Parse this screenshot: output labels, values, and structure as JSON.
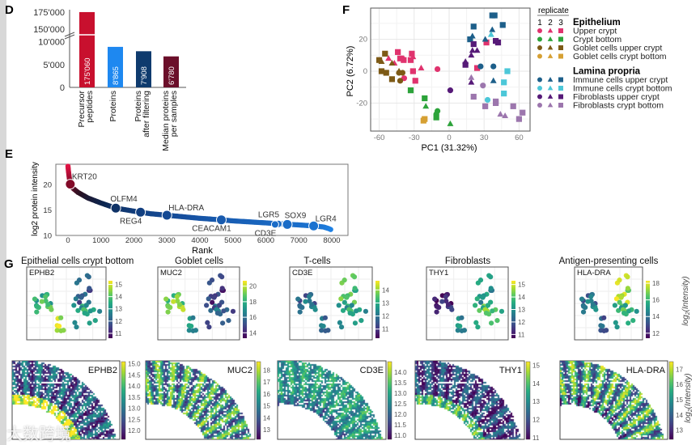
{
  "panel_letters": {
    "D": "D",
    "E": "E",
    "F": "F",
    "G": "G"
  },
  "watermark": "大数跨境",
  "chart_data": [
    {
      "id": "D",
      "type": "bar",
      "categories": [
        [
          "Precursor",
          "peptides"
        ],
        [
          "Proteins"
        ],
        [
          "Proteins",
          "after filtering"
        ],
        [
          "Median proteins",
          "per samples"
        ]
      ],
      "values": [
        175060,
        8865,
        7908,
        6780
      ],
      "value_labels": [
        "175'060",
        "8'865",
        "7'908",
        "6'780"
      ],
      "colors": [
        "#c8102e",
        "#1e88f0",
        "#0f3b6e",
        "#6b0f2a"
      ],
      "ytick_labels": [
        "0",
        "5'000",
        "10'000",
        "150'000",
        "175'000"
      ],
      "yticks": [
        0,
        5000,
        10000,
        150000,
        175000
      ],
      "axis_break": [
        10500,
        148000
      ]
    },
    {
      "id": "E",
      "type": "line",
      "xlabel": "Rank",
      "ylabel": "log2 protein intensity",
      "xticks": [
        0,
        1000,
        2000,
        3000,
        4000,
        5000,
        6000,
        7000,
        8000
      ],
      "yticks": [
        10,
        15,
        20
      ],
      "xlim": [
        -400,
        8450
      ],
      "ylim": [
        9.9,
        24
      ],
      "curve": [
        [
          0,
          23.5
        ],
        [
          15,
          22.5
        ],
        [
          40,
          21.2
        ],
        [
          70,
          20.2
        ],
        [
          150,
          19.2
        ],
        [
          300,
          18.4
        ],
        [
          600,
          17.3
        ],
        [
          1000,
          16.3
        ],
        [
          1450,
          15.3
        ],
        [
          2000,
          14.7
        ],
        [
          2500,
          14.2
        ],
        [
          3000,
          13.9
        ],
        [
          3500,
          13.6
        ],
        [
          4000,
          13.3
        ],
        [
          4650,
          13.0
        ],
        [
          5000,
          12.8
        ],
        [
          5500,
          12.6
        ],
        [
          6000,
          12.4
        ],
        [
          6500,
          12.2
        ],
        [
          7000,
          12.0
        ],
        [
          7450,
          11.8
        ],
        [
          7750,
          11.6
        ],
        [
          7900,
          11.3
        ],
        [
          8000,
          11.0
        ]
      ],
      "labeled_proteins": [
        {
          "name": "KRT20",
          "rank": 70,
          "value": 20.0,
          "pos": "above-right"
        },
        {
          "name": "OLFM4",
          "rank": 1450,
          "value": 15.3,
          "pos": "above"
        },
        {
          "name": "REG4",
          "rank": 2200,
          "value": 14.5,
          "pos": "below-left"
        },
        {
          "name": "HLA-DRA",
          "rank": 3000,
          "value": 13.9,
          "pos": "above-right"
        },
        {
          "name": "CEACAM1",
          "rank": 4650,
          "value": 13.0,
          "pos": "below-left"
        },
        {
          "name": "LGR5",
          "rank": 6380,
          "value": 12.2,
          "pos": "above-left"
        },
        {
          "name": "CD3E",
          "rank": 6280,
          "value": 12.1,
          "pos": "below-left"
        },
        {
          "name": "SOX9",
          "rank": 6650,
          "value": 12.1,
          "pos": "above"
        },
        {
          "name": "LGR4",
          "rank": 7450,
          "value": 11.8,
          "pos": "above-right"
        }
      ]
    },
    {
      "id": "F",
      "type": "scatter",
      "xlabel": "PC1 (31.32%)",
      "ylabel": "PC2 (6.72%)",
      "xticks": [
        -60,
        -30,
        0,
        30,
        60
      ],
      "yticks": [
        -20,
        0,
        20
      ],
      "xlim": [
        -66,
        70
      ],
      "ylim": [
        -37,
        40
      ],
      "legend_title": "replicate",
      "replicates": [
        "1",
        "2",
        "3"
      ],
      "replicate_shapes": [
        "circle",
        "triangle",
        "square"
      ],
      "groups": [
        {
          "tissue": "Epithelium",
          "items": [
            {
              "name": "Upper crypt",
              "color": "#e0336e"
            },
            {
              "name": "Crypt bottom",
              "color": "#2ca33a"
            },
            {
              "name": "Goblet cells upper crypt",
              "color": "#7d5a16"
            },
            {
              "name": "Goblet cells crypt bottom",
              "color": "#d6a033"
            }
          ]
        },
        {
          "tissue": "Lamina propria",
          "items": [
            {
              "name": "Immune cells upper crypt",
              "color": "#1d5f8a"
            },
            {
              "name": "Immune cells crypt bottom",
              "color": "#4cc7d8"
            },
            {
              "name": "Fibroblasts upper crypt",
              "color": "#561a78"
            },
            {
              "name": "Fibroblasts crypt bottom",
              "color": "#9c76ad"
            }
          ]
        }
      ],
      "points": [
        {
          "g": "Upper crypt",
          "r": 1,
          "x": -10,
          "y": 1.3
        },
        {
          "g": "Upper crypt",
          "r": 1,
          "x": -38.6,
          "y": -4.4
        },
        {
          "g": "Upper crypt",
          "r": 2,
          "x": -52,
          "y": 8
        },
        {
          "g": "Upper crypt",
          "r": 2,
          "x": -47,
          "y": 5
        },
        {
          "g": "Upper crypt",
          "r": 2,
          "x": -39,
          "y": 8
        },
        {
          "g": "Upper crypt",
          "r": 2,
          "x": -31,
          "y": 9
        },
        {
          "g": "Upper crypt",
          "r": 2,
          "x": -24,
          "y": 2
        },
        {
          "g": "Upper crypt",
          "r": 3,
          "x": -44,
          "y": 12
        },
        {
          "g": "Upper crypt",
          "r": 3,
          "x": -42,
          "y": 8
        },
        {
          "g": "Upper crypt",
          "r": 3,
          "x": -39,
          "y": 7
        },
        {
          "g": "Upper crypt",
          "r": 3,
          "x": -32,
          "y": 11
        },
        {
          "g": "Upper crypt",
          "r": 3,
          "x": -33,
          "y": 7
        },
        {
          "g": "Upper crypt",
          "r": 3,
          "x": -31,
          "y": 0
        },
        {
          "g": "Upper crypt",
          "r": 3,
          "x": -29,
          "y": -6
        },
        {
          "g": "Upper crypt",
          "r": 3,
          "x": 32,
          "y": 18
        },
        {
          "g": "Upper crypt",
          "r": 3,
          "x": 24,
          "y": 2
        },
        {
          "g": "Crypt bottom",
          "r": 1,
          "x": -10,
          "y": -25
        },
        {
          "g": "Crypt bottom",
          "r": 1,
          "x": -11,
          "y": -27
        },
        {
          "g": "Crypt bottom",
          "r": 2,
          "x": -20,
          "y": -22
        },
        {
          "g": "Crypt bottom",
          "r": 2,
          "x": 1,
          "y": -33
        },
        {
          "g": "Crypt bottom",
          "r": 3,
          "x": -33,
          "y": -12
        },
        {
          "g": "Crypt bottom",
          "r": 3,
          "x": -21,
          "y": -17
        },
        {
          "g": "Crypt bottom",
          "r": 3,
          "x": -11,
          "y": -29
        },
        {
          "g": "Goblet cells upper crypt",
          "r": 1,
          "x": -43,
          "y": -1
        },
        {
          "g": "Goblet cells upper crypt",
          "r": 1,
          "x": -42,
          "y": -6
        },
        {
          "g": "Goblet cells upper crypt",
          "r": 1,
          "x": -40,
          "y": -1
        },
        {
          "g": "Goblet cells upper crypt",
          "r": 2,
          "x": -58,
          "y": 6
        },
        {
          "g": "Goblet cells upper crypt",
          "r": 2,
          "x": -49,
          "y": 5
        },
        {
          "g": "Goblet cells upper crypt",
          "r": 2,
          "x": -43,
          "y": 0
        },
        {
          "g": "Goblet cells upper crypt",
          "r": 3,
          "x": -60,
          "y": 7
        },
        {
          "g": "Goblet cells upper crypt",
          "r": 3,
          "x": -55,
          "y": 11
        },
        {
          "g": "Goblet cells upper crypt",
          "r": 3,
          "x": -58,
          "y": 0
        },
        {
          "g": "Goblet cells upper crypt",
          "r": 3,
          "x": -54,
          "y": -1
        },
        {
          "g": "Goblet cells upper crypt",
          "r": 3,
          "x": -49,
          "y": -5
        },
        {
          "g": "Goblet cells crypt bottom",
          "r": 3,
          "x": -22,
          "y": -31
        },
        {
          "g": "Goblet cells crypt bottom",
          "r": 3,
          "x": -21,
          "y": -30
        },
        {
          "g": "Immune cells upper crypt",
          "r": 1,
          "x": 27,
          "y": 3
        },
        {
          "g": "Immune cells upper crypt",
          "r": 1,
          "x": 38,
          "y": 3
        },
        {
          "g": "Immune cells upper crypt",
          "r": 2,
          "x": 20,
          "y": 22
        },
        {
          "g": "Immune cells upper crypt",
          "r": 2,
          "x": 37,
          "y": 26
        },
        {
          "g": "Immune cells upper crypt",
          "r": 2,
          "x": 31,
          "y": 20
        },
        {
          "g": "Immune cells upper crypt",
          "r": 2,
          "x": 38,
          "y": -6
        },
        {
          "g": "Immune cells upper crypt",
          "r": 3,
          "x": 21,
          "y": 28
        },
        {
          "g": "Immune cells upper crypt",
          "r": 3,
          "x": 18,
          "y": 20
        },
        {
          "g": "Immune cells upper crypt",
          "r": 3,
          "x": 37,
          "y": 35
        },
        {
          "g": "Immune cells upper crypt",
          "r": 3,
          "x": 39,
          "y": 35
        },
        {
          "g": "Immune cells upper crypt",
          "r": 3,
          "x": 46,
          "y": 29
        },
        {
          "g": "Immune cells crypt bottom",
          "r": 1,
          "x": 33,
          "y": -18
        },
        {
          "g": "Immune cells crypt bottom",
          "r": 2,
          "x": 36,
          "y": 23
        },
        {
          "g": "Immune cells crypt bottom",
          "r": 3,
          "x": 50,
          "y": 0
        },
        {
          "g": "Immune cells crypt bottom",
          "r": 3,
          "x": 47,
          "y": -7
        },
        {
          "g": "Immune cells crypt bottom",
          "r": 3,
          "x": 47,
          "y": -14
        },
        {
          "g": "Fibroblasts upper crypt",
          "r": 1,
          "x": 1,
          "y": -12
        },
        {
          "g": "Fibroblasts upper crypt",
          "r": 2,
          "x": 14,
          "y": 6
        },
        {
          "g": "Fibroblasts upper crypt",
          "r": 2,
          "x": 20,
          "y": 13
        },
        {
          "g": "Fibroblasts upper crypt",
          "r": 2,
          "x": 19,
          "y": 10
        },
        {
          "g": "Fibroblasts upper crypt",
          "r": 2,
          "x": 24,
          "y": 13
        },
        {
          "g": "Fibroblasts upper crypt",
          "r": 2,
          "x": 19,
          "y": -7
        },
        {
          "g": "Fibroblasts upper crypt",
          "r": 3,
          "x": 14,
          "y": 4
        },
        {
          "g": "Fibroblasts upper crypt",
          "r": 3,
          "x": 21,
          "y": 17
        },
        {
          "g": "Fibroblasts upper crypt",
          "r": 3,
          "x": 40,
          "y": 19
        },
        {
          "g": "Fibroblasts upper crypt",
          "r": 3,
          "x": 42,
          "y": 18
        },
        {
          "g": "Fibroblasts crypt bottom",
          "r": 1,
          "x": 29,
          "y": -9
        },
        {
          "g": "Fibroblasts crypt bottom",
          "r": 2,
          "x": 19,
          "y": -4
        },
        {
          "g": "Fibroblasts crypt bottom",
          "r": 2,
          "x": 44,
          "y": -27
        },
        {
          "g": "Fibroblasts crypt bottom",
          "r": 2,
          "x": 48,
          "y": -28
        },
        {
          "g": "Fibroblasts crypt bottom",
          "r": 3,
          "x": 21,
          "y": -16
        },
        {
          "g": "Fibroblasts crypt bottom",
          "r": 3,
          "x": 31,
          "y": -22
        },
        {
          "g": "Fibroblasts crypt bottom",
          "r": 3,
          "x": 40,
          "y": -19
        },
        {
          "g": "Fibroblasts crypt bottom",
          "r": 3,
          "x": 40,
          "y": -20
        },
        {
          "g": "Fibroblasts crypt bottom",
          "r": 3,
          "x": 55,
          "y": -22
        },
        {
          "g": "Fibroblasts crypt bottom",
          "r": 3,
          "x": 60,
          "y": -30
        },
        {
          "g": "Fibroblasts crypt bottom",
          "r": 3,
          "x": 63,
          "y": -26
        }
      ]
    },
    {
      "id": "G",
      "type": "heatmap",
      "colormap": "viridis",
      "colorbar_label": "log2(Intensity)",
      "colorbar_label_base": "log",
      "colorbar_label_sub": "2",
      "colorbar_label_rest": "(Intensity)",
      "panels": [
        {
          "title": "Epithelial cells crypt bottom",
          "gene": "EPHB2",
          "pca_range": [
            10.6,
            15.3
          ],
          "pca_ticks": [
            11,
            12,
            13,
            14,
            15
          ],
          "cluster_means": {
            "left": 13.6,
            "bottom": 14.9,
            "right_top": 12.0,
            "right_bottom": 13.3
          },
          "spatial_range": [
            11.6,
            15.1
          ],
          "spatial_ticks": [
            "12.0",
            "12.5",
            "13.0",
            "13.5",
            "14.0",
            "14.5",
            "15.0"
          ],
          "spatial_pattern": {
            "base": 12.6,
            "inner": 2.4,
            "stripe": 0.8
          }
        },
        {
          "title": "Goblet cells",
          "gene": "MUC2",
          "pca_range": [
            13.3,
            20.7
          ],
          "pca_ticks": [
            14,
            16,
            18,
            20
          ],
          "cluster_means": {
            "left": 19.0,
            "bottom": 17.2,
            "right_top": 14.6,
            "right_bottom": 15.6
          },
          "spatial_range": [
            12.2,
            18.7
          ],
          "spatial_ticks": [
            "13",
            "14",
            "15",
            "16",
            "17",
            "18"
          ],
          "spatial_pattern": {
            "base": 15.6,
            "inner": 0.3,
            "stripe": 2.4
          }
        },
        {
          "title": "T-cells",
          "gene": "CD3E",
          "pca_range": [
            10.3,
            14.7
          ],
          "pca_ticks": [
            11,
            12,
            13,
            14
          ],
          "cluster_means": {
            "left": 11.8,
            "bottom": 12.0,
            "right_top": 13.4,
            "right_bottom": 12.8
          },
          "spatial_range": [
            10.8,
            14.5
          ],
          "spatial_ticks": [
            "11.0",
            "11.5",
            "12.0",
            "12.5",
            "13.0",
            "13.5",
            "14.0"
          ],
          "spatial_pattern": {
            "base": 12.8,
            "inner": -0.6,
            "stripe": 0.6
          }
        },
        {
          "title": "Fibroblasts",
          "gene": "THY1",
          "pca_range": [
            10.7,
            15.3
          ],
          "pca_ticks": [
            11,
            12,
            13,
            14,
            15
          ],
          "cluster_means": {
            "left": 11.0,
            "bottom": 13.0,
            "right_top": 13.1,
            "right_bottom": 14.0
          },
          "spatial_range": [
            10.9,
            15.2
          ],
          "spatial_ticks": [
            "11",
            "12",
            "13",
            "14",
            "15"
          ],
          "spatial_pattern": {
            "base": 11.8,
            "inner": 2.0,
            "stripe": 0.9
          }
        },
        {
          "title": "Antigen-presenting cells",
          "gene": "HLA-DRA",
          "pca_range": [
            11.4,
            18.3
          ],
          "pca_ticks": [
            12,
            14,
            16,
            18
          ],
          "cluster_means": {
            "left": 14.0,
            "bottom": 13.6,
            "right_top": 17.4,
            "right_bottom": 15.8
          },
          "spatial_range": [
            12.4,
            17.5
          ],
          "spatial_ticks": [
            "13",
            "14",
            "15",
            "16",
            "17"
          ],
          "spatial_pattern": {
            "base": 15.2,
            "inner": -0.8,
            "stripe": 1.9
          }
        }
      ]
    }
  ]
}
